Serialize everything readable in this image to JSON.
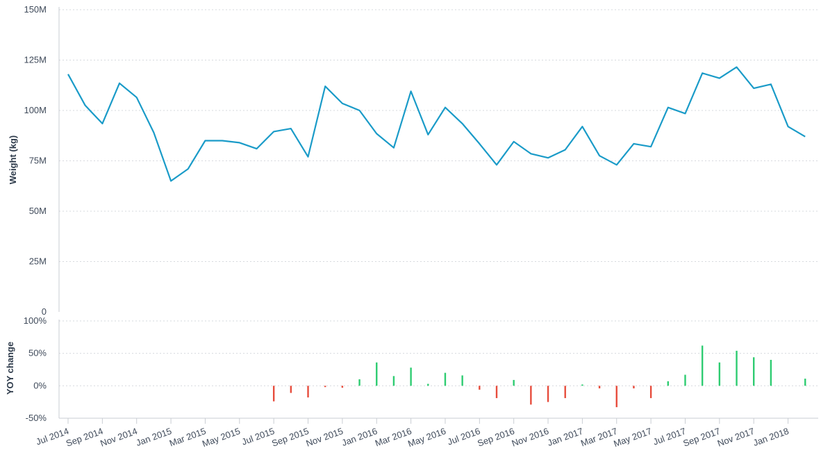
{
  "chart_data": [
    {
      "type": "line",
      "ylabel": "Weight (kg)",
      "ylim": [
        0,
        150000000
      ],
      "yticks": [
        "0",
        "25M",
        "50M",
        "75M",
        "100M",
        "125M",
        "150M"
      ],
      "grid": true,
      "line_color": "#1a9bc8",
      "x": [
        "2014-07",
        "2014-08",
        "2014-09",
        "2014-10",
        "2014-11",
        "2014-12",
        "2015-01",
        "2015-02",
        "2015-03",
        "2015-04",
        "2015-05",
        "2015-06",
        "2015-07",
        "2015-08",
        "2015-09",
        "2015-10",
        "2015-11",
        "2015-12",
        "2016-01",
        "2016-02",
        "2016-03",
        "2016-04",
        "2016-05",
        "2016-06",
        "2016-07",
        "2016-08",
        "2016-09",
        "2016-10",
        "2016-11",
        "2016-12",
        "2017-01",
        "2017-02",
        "2017-03",
        "2017-04",
        "2017-05",
        "2017-06",
        "2017-07",
        "2017-08",
        "2017-09",
        "2017-10",
        "2017-11",
        "2017-12",
        "2018-01",
        "2018-02"
      ],
      "values": [
        118000000,
        102500000,
        93500000,
        113500000,
        106500000,
        89000000,
        65000000,
        71000000,
        85000000,
        85000000,
        84000000,
        81000000,
        89500000,
        91000000,
        77000000,
        112000000,
        103500000,
        100000000,
        88500000,
        81500000,
        109500000,
        88000000,
        101500000,
        93500000,
        83500000,
        73000000,
        84500000,
        78500000,
        76500000,
        80500000,
        92000000,
        77500000,
        73000000,
        83500000,
        82000000,
        101500000,
        98500000,
        118500000,
        116000000,
        121500000,
        111000000,
        113000000,
        92000000,
        87000000
      ]
    },
    {
      "type": "bar",
      "ylabel": "YOY change",
      "ylim": [
        -50,
        100
      ],
      "yticks": [
        "-50%",
        "0%",
        "50%",
        "100%"
      ],
      "grid": true,
      "positive_color": "#2ecc71",
      "negative_color": "#e74c3c",
      "x": [
        "2015-07",
        "2015-08",
        "2015-09",
        "2015-10",
        "2015-11",
        "2015-12",
        "2016-01",
        "2016-02",
        "2016-03",
        "2016-04",
        "2016-05",
        "2016-06",
        "2016-07",
        "2016-08",
        "2016-09",
        "2016-10",
        "2016-11",
        "2016-12",
        "2017-01",
        "2017-02",
        "2017-03",
        "2017-04",
        "2017-05",
        "2017-06",
        "2017-07",
        "2017-08",
        "2017-09",
        "2017-10",
        "2017-11",
        "2017-12",
        "2018-02"
      ],
      "values": [
        -24,
        -11,
        -18,
        -2,
        -3,
        10,
        36,
        15,
        28,
        3,
        20,
        16,
        -6,
        -19,
        9,
        -29,
        -25,
        -19,
        2,
        -4,
        -33,
        -4,
        -19,
        7,
        17,
        62,
        36,
        54,
        44,
        40,
        11
      ]
    }
  ],
  "x_axis": {
    "ticks": [
      "Jul 2014",
      "Sep 2014",
      "Nov 2014",
      "Jan 2015",
      "Mar 2015",
      "May 2015",
      "Jul 2015",
      "Sep 2015",
      "Nov 2015",
      "Jan 2016",
      "Mar 2016",
      "May 2016",
      "Jul 2016",
      "Sep 2016",
      "Nov 2016",
      "Jan 2017",
      "Mar 2017",
      "May 2017",
      "Jul 2017",
      "Sep 2017",
      "Nov 2017",
      "Jan 2018"
    ],
    "tick_months": [
      "2014-07",
      "2014-09",
      "2014-11",
      "2015-01",
      "2015-03",
      "2015-05",
      "2015-07",
      "2015-09",
      "2015-11",
      "2016-01",
      "2016-03",
      "2016-05",
      "2016-07",
      "2016-09",
      "2016-11",
      "2017-01",
      "2017-03",
      "2017-05",
      "2017-07",
      "2017-09",
      "2017-11",
      "2018-01"
    ]
  }
}
